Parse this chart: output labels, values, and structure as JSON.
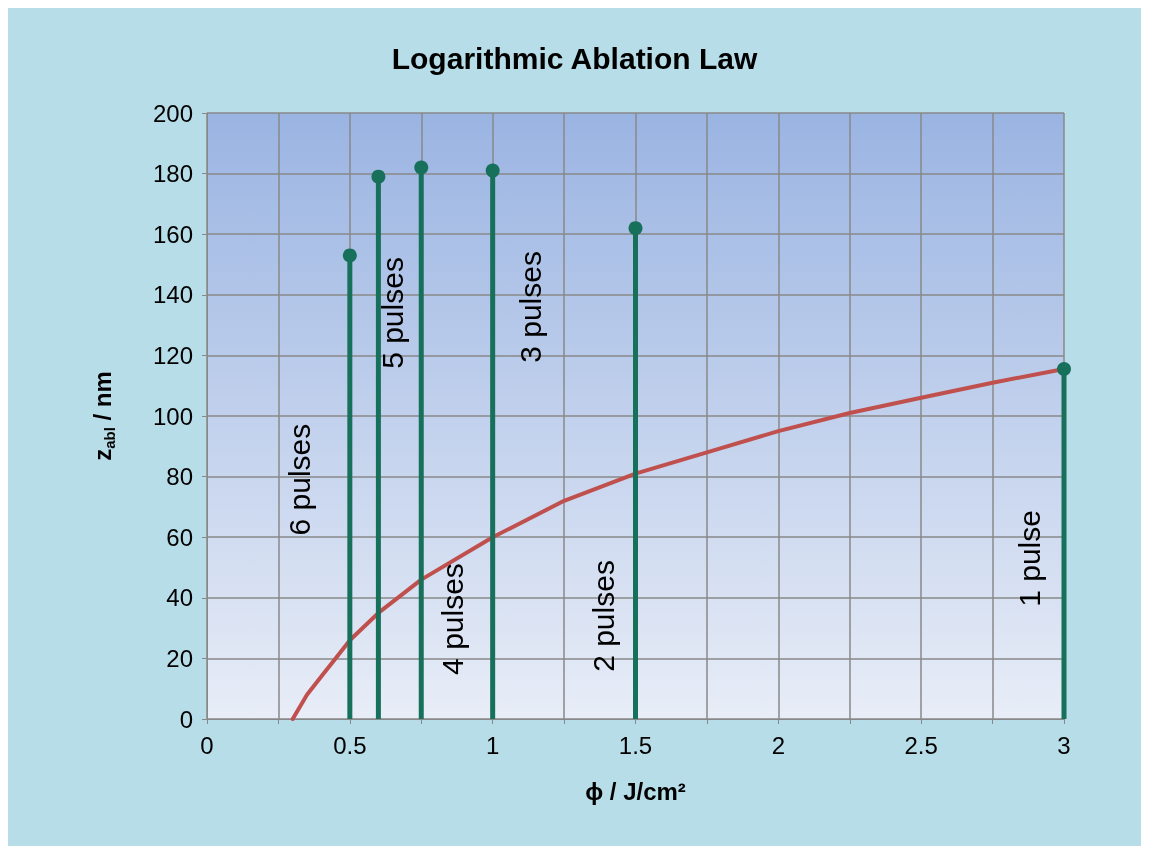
{
  "chart_data": {
    "type": "line",
    "title": "Logarithmic Ablation Law",
    "xlabel": "ϕ / J/cm²",
    "ylabel": "z$_{abl}$ / nm",
    "xlim": [
      0,
      3
    ],
    "ylim": [
      0,
      200
    ],
    "xticks": [
      0,
      {
        "value": 0.25,
        "label": null
      },
      0.5,
      {
        "value": 0.75,
        "label": null
      },
      1,
      {
        "value": 1.25,
        "label": null
      },
      1.5,
      {
        "value": 1.75,
        "label": null
      },
      2,
      {
        "value": 2.25,
        "label": null
      },
      2.5,
      {
        "value": 2.75,
        "label": null
      },
      3
    ],
    "yticks": [
      0,
      20,
      40,
      60,
      80,
      100,
      120,
      140,
      160,
      180,
      200
    ],
    "grid": true,
    "series": [
      {
        "color": "#c0504d",
        "marker": "none",
        "x": [
          0.3,
          0.35,
          0.4,
          0.45,
          0.5,
          0.6,
          0.75,
          1,
          1.25,
          1.5,
          1.75,
          2,
          2.25,
          2.5,
          2.75,
          3
        ],
        "values": [
          0,
          8,
          14,
          20,
          26,
          35,
          46,
          60,
          72,
          81,
          88,
          95,
          101,
          106,
          111,
          115.5
        ]
      },
      {
        "type": "lollipop",
        "color": "#17705a",
        "marker": "circle",
        "x": [
          0.5,
          0.6,
          0.75,
          1,
          1.5,
          3
        ],
        "values": [
          153,
          179,
          182,
          181,
          162,
          115.5
        ]
      }
    ],
    "annotations": [
      "6 pulses",
      "5 pulses",
      "4 pulses",
      "3 pulses",
      "2 pulses",
      "1 pulse"
    ]
  }
}
